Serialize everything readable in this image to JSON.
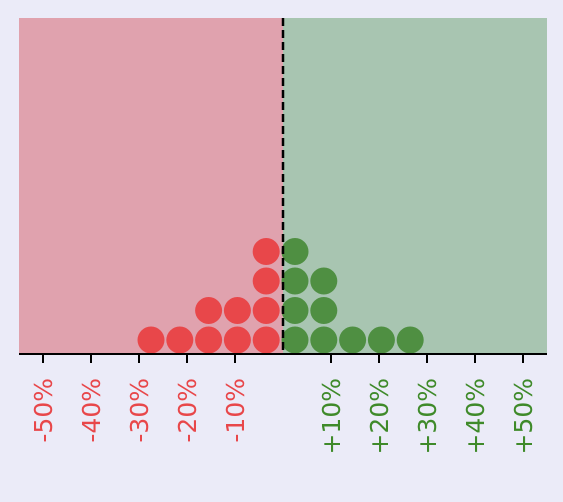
{
  "chart_data": {
    "type": "scatter",
    "style": "dot-plot",
    "xlim": [
      -55,
      55
    ],
    "divider_x": 0,
    "grid": false,
    "legend": "none",
    "colors": {
      "page_background": "#ebebf8",
      "negative_region": "#e0a2ae",
      "positive_region": "#a8c5b1",
      "negative_dot": "#e8474a",
      "positive_dot": "#4f8f42",
      "negative_text": "#e8474a",
      "positive_text": "#3f8a2a",
      "axis": "#000000"
    },
    "ticks": [
      {
        "value": -50,
        "label": "-50%"
      },
      {
        "value": -40,
        "label": "-40%"
      },
      {
        "value": -30,
        "label": "-30%"
      },
      {
        "value": -20,
        "label": "-20%"
      },
      {
        "value": -10,
        "label": "-10%"
      },
      {
        "value": 10,
        "label": "+10%"
      },
      {
        "value": 20,
        "label": "+20%"
      },
      {
        "value": 30,
        "label": "+30%"
      },
      {
        "value": 40,
        "label": "+40%"
      },
      {
        "value": 50,
        "label": "+50%"
      }
    ],
    "columns": [
      {
        "x": -27.5,
        "count": 1
      },
      {
        "x": -21.5,
        "count": 1
      },
      {
        "x": -15.5,
        "count": 2
      },
      {
        "x": -9.5,
        "count": 2
      },
      {
        "x": -3.5,
        "count": 4
      },
      {
        "x": 2.5,
        "count": 4
      },
      {
        "x": 8.5,
        "count": 3
      },
      {
        "x": 14.5,
        "count": 1
      },
      {
        "x": 20.5,
        "count": 1
      },
      {
        "x": 26.5,
        "count": 1
      }
    ]
  }
}
